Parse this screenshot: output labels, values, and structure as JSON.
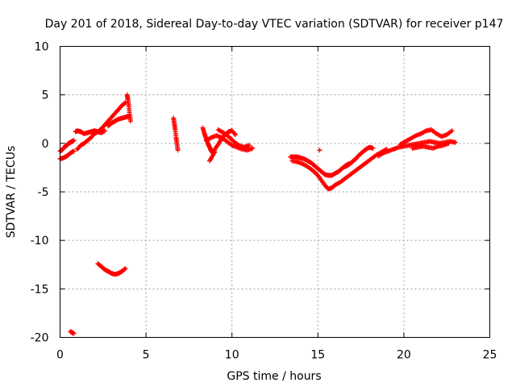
{
  "chart_data": {
    "type": "scatter",
    "title": "Day 201 of 2018, Sidereal Day-to-day VTEC variation (SDTVAR) for receiver p147",
    "xlabel": "GPS time / hours",
    "ylabel": "SDTVAR / TECUs",
    "xlim": [
      0,
      25
    ],
    "ylim": [
      -20,
      10
    ],
    "xticks": [
      0,
      5,
      10,
      15,
      20,
      25
    ],
    "yticks": [
      -20,
      -15,
      -10,
      -5,
      0,
      5,
      10
    ],
    "grid": true,
    "marker": "+",
    "colors": {
      "series": "#ff0000",
      "axes": "#000000",
      "grid": "#a0a0a0"
    },
    "series": [
      {
        "name": "SDTVAR",
        "segments": [
          {
            "t": [
              0.0,
              0.1,
              0.2,
              0.3,
              0.4,
              0.5,
              0.6,
              0.7,
              0.8
            ],
            "v": [
              -0.8,
              -0.7,
              -0.5,
              -0.3,
              -0.2,
              0.0,
              0.1,
              0.2,
              0.3
            ]
          },
          {
            "t": [
              0.0,
              0.2,
              0.4,
              0.6,
              0.8
            ],
            "v": [
              -1.6,
              -1.5,
              -1.3,
              -1.0,
              -0.8
            ]
          },
          {
            "t": [
              0.9,
              1.0,
              1.2,
              1.4,
              1.6,
              1.8,
              2.0,
              2.2,
              2.4,
              2.6
            ],
            "v": [
              1.2,
              1.3,
              1.2,
              1.0,
              1.1,
              1.2,
              1.3,
              1.2,
              1.1,
              1.3
            ]
          },
          {
            "t": [
              1.0,
              1.2,
              1.4,
              1.6,
              1.8,
              2.0,
              2.2,
              2.4,
              2.6,
              2.8,
              3.0,
              3.2,
              3.4,
              3.6,
              3.8
            ],
            "v": [
              -0.6,
              -0.2,
              0.0,
              0.3,
              0.6,
              1.0,
              1.2,
              1.5,
              1.9,
              2.3,
              2.7,
              3.1,
              3.5,
              3.9,
              4.2
            ]
          },
          {
            "t": [
              2.8,
              3.0,
              3.2,
              3.4,
              3.6,
              3.8,
              4.0
            ],
            "v": [
              1.8,
              2.1,
              2.3,
              2.5,
              2.6,
              2.7,
              2.8
            ]
          },
          {
            "t": [
              3.9,
              3.95,
              4.0,
              4.05,
              4.1
            ],
            "v": [
              5.0,
              4.5,
              3.8,
              3.0,
              2.3
            ]
          },
          {
            "t": [
              6.6,
              6.65,
              6.7,
              6.75,
              6.8,
              6.85
            ],
            "v": [
              2.6,
              2.0,
              1.4,
              0.6,
              0.0,
              -0.7
            ]
          },
          {
            "t": [
              8.3,
              8.4,
              8.5,
              8.6,
              8.7,
              8.8,
              8.9,
              9.0
            ],
            "v": [
              1.6,
              1.0,
              0.5,
              0.0,
              -0.4,
              -0.8,
              -1.0,
              -0.9
            ]
          },
          {
            "t": [
              8.7,
              8.9,
              9.0,
              9.2,
              9.4,
              9.6,
              9.8,
              10.0,
              10.2
            ],
            "v": [
              -1.8,
              -1.2,
              -0.6,
              -0.1,
              0.5,
              0.9,
              1.2,
              1.3,
              0.9
            ]
          },
          {
            "t": [
              8.5,
              8.8,
              9.1,
              9.4,
              9.7,
              10.0,
              10.3,
              10.6,
              10.9,
              11.2
            ],
            "v": [
              0.3,
              0.6,
              0.8,
              0.6,
              0.2,
              -0.2,
              -0.4,
              -0.6,
              -0.7,
              -0.5
            ]
          },
          {
            "t": [
              9.2,
              9.5,
              9.8,
              10.1,
              10.4,
              10.7,
              11.0
            ],
            "v": [
              1.4,
              1.1,
              0.7,
              0.2,
              -0.2,
              -0.4,
              -0.2
            ]
          },
          {
            "t": [
              13.4,
              13.6,
              13.8,
              14.0,
              14.2,
              14.4,
              14.6,
              14.8,
              15.0,
              15.2,
              15.4,
              15.6,
              15.8,
              16.0,
              16.2,
              16.4,
              16.6,
              16.8
            ],
            "v": [
              -1.4,
              -1.4,
              -1.4,
              -1.5,
              -1.6,
              -1.8,
              -2.0,
              -2.3,
              -2.6,
              -2.9,
              -3.2,
              -3.3,
              -3.3,
              -3.1,
              -2.9,
              -2.6,
              -2.3,
              -2.1
            ]
          },
          {
            "t": [
              13.5,
              13.8,
              14.1,
              14.4,
              14.7,
              15.0,
              15.2,
              15.4,
              15.6,
              15.8,
              16.0,
              16.3,
              16.6,
              16.9,
              17.2,
              17.5,
              17.8,
              18.1,
              18.4,
              18.7,
              19.0
            ],
            "v": [
              -1.8,
              -1.9,
              -2.1,
              -2.4,
              -2.8,
              -3.3,
              -3.8,
              -4.3,
              -4.7,
              -4.6,
              -4.3,
              -4.0,
              -3.6,
              -3.2,
              -2.8,
              -2.4,
              -2.0,
              -1.6,
              -1.2,
              -0.9,
              -0.6
            ]
          },
          {
            "t": [
              16.6,
              16.8,
              17.0,
              17.2,
              17.4,
              17.6,
              17.8,
              18.0,
              18.2
            ],
            "v": [
              -2.4,
              -2.2,
              -1.9,
              -1.6,
              -1.2,
              -0.9,
              -0.6,
              -0.4,
              -0.5
            ]
          },
          {
            "t": [
              15.1
            ],
            "v": [
              -0.7
            ]
          },
          {
            "t": [
              18.5,
              18.8,
              19.1,
              19.4,
              19.7,
              20.0,
              20.3,
              20.6,
              20.9,
              21.2,
              21.5,
              21.8,
              22.1,
              22.4,
              22.7,
              23.0
            ],
            "v": [
              -1.3,
              -1.0,
              -0.8,
              -0.6,
              -0.4,
              -0.3,
              -0.2,
              -0.1,
              0.0,
              0.1,
              0.2,
              0.1,
              0.0,
              0.1,
              0.2,
              0.1
            ]
          },
          {
            "t": [
              19.8,
              20.1,
              20.4,
              20.7,
              21.0,
              21.3,
              21.6,
              21.9,
              22.2,
              22.5,
              22.8
            ],
            "v": [
              -0.1,
              0.2,
              0.5,
              0.8,
              1.0,
              1.3,
              1.4,
              1.0,
              0.7,
              0.9,
              1.3
            ]
          },
          {
            "t": [
              20.5,
              20.8,
              21.1,
              21.4,
              21.7,
              22.0,
              22.3,
              22.6
            ],
            "v": [
              -0.5,
              -0.4,
              -0.3,
              -0.4,
              -0.5,
              -0.3,
              -0.2,
              0.0
            ]
          },
          {
            "t": [
              2.2,
              2.4,
              2.6,
              2.8,
              3.0,
              3.2,
              3.4,
              3.6,
              3.8
            ],
            "v": [
              -12.4,
              -12.7,
              -13.0,
              -13.2,
              -13.4,
              -13.5,
              -13.4,
              -13.2,
              -12.9
            ]
          },
          {
            "t": [
              0.6,
              0.7,
              0.8
            ],
            "v": [
              -19.4,
              -19.5,
              -19.6
            ]
          }
        ]
      }
    ]
  }
}
